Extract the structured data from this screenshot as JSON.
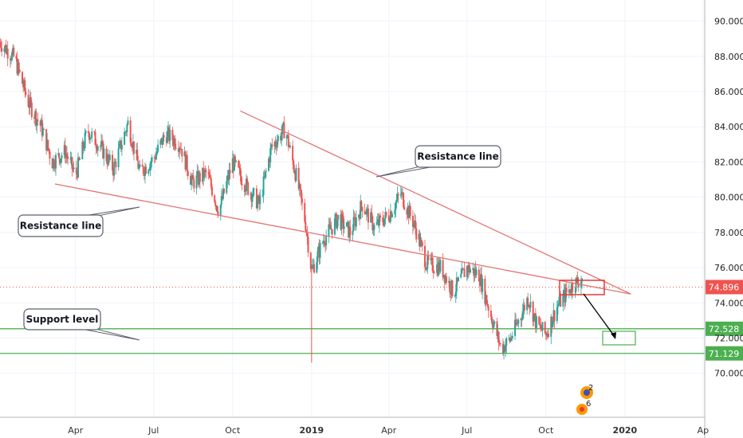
{
  "chart_data": {
    "type": "candlestick",
    "y_ticks": [
      70,
      72,
      74,
      76,
      78,
      80,
      82,
      84,
      86,
      88,
      90
    ],
    "y_tick_labels": [
      "70.000",
      "72.000",
      "74.000",
      "76.000",
      "78.000",
      "80.000",
      "82.000",
      "84.000",
      "86.000",
      "88.000",
      "90.000"
    ],
    "ylim": [
      67.5,
      91.2
    ],
    "x_ticks": [
      {
        "label": "Apr",
        "date": "2018-04-01"
      },
      {
        "label": "Jul",
        "date": "2018-07-01"
      },
      {
        "label": "Oct",
        "date": "2018-10-01"
      },
      {
        "label": "2019",
        "date": "2019-01-01",
        "bold": true
      },
      {
        "label": "Apr",
        "date": "2019-04-01"
      },
      {
        "label": "Jul",
        "date": "2019-07-01"
      },
      {
        "label": "Oct",
        "date": "2019-10-01"
      },
      {
        "label": "2020",
        "date": "2020-01-01",
        "bold": true
      },
      {
        "label": "Ap",
        "date": "2020-04-01"
      }
    ],
    "xlim": [
      "2018-01-03",
      "2020-04-03"
    ],
    "price_path": [
      [
        "2018-01-03",
        88.8
      ],
      [
        "2018-01-20",
        87.9
      ],
      [
        "2018-02-05",
        85.4
      ],
      [
        "2018-02-20",
        84.0
      ],
      [
        "2018-03-05",
        82.0
      ],
      [
        "2018-03-20",
        82.6
      ],
      [
        "2018-04-01",
        81.2
      ],
      [
        "2018-04-15",
        83.8
      ],
      [
        "2018-05-01",
        82.8
      ],
      [
        "2018-05-15",
        81.6
      ],
      [
        "2018-06-01",
        84.2
      ],
      [
        "2018-06-15",
        81.4
      ],
      [
        "2018-07-01",
        82.2
      ],
      [
        "2018-07-15",
        83.6
      ],
      [
        "2018-08-01",
        83.0
      ],
      [
        "2018-08-15",
        80.8
      ],
      [
        "2018-09-01",
        81.4
      ],
      [
        "2018-09-15",
        79.2
      ],
      [
        "2018-10-01",
        82.0
      ],
      [
        "2018-10-15",
        80.8
      ],
      [
        "2018-11-01",
        79.6
      ],
      [
        "2018-11-15",
        82.8
      ],
      [
        "2018-12-01",
        83.9
      ],
      [
        "2018-12-15",
        81.0
      ],
      [
        "2018-12-25",
        78.5
      ],
      [
        "2019-01-01",
        75.8
      ],
      [
        "2019-01-15",
        77.6
      ],
      [
        "2019-02-01",
        78.8
      ],
      [
        "2019-02-15",
        78.0
      ],
      [
        "2019-03-01",
        79.6
      ],
      [
        "2019-03-15",
        78.3
      ],
      [
        "2019-04-01",
        79.0
      ],
      [
        "2019-04-15",
        80.2
      ],
      [
        "2019-05-01",
        78.4
      ],
      [
        "2019-05-15",
        76.2
      ],
      [
        "2019-06-01",
        76.0
      ],
      [
        "2019-06-15",
        74.6
      ],
      [
        "2019-07-01",
        76.0
      ],
      [
        "2019-07-15",
        75.6
      ],
      [
        "2019-08-01",
        72.8
      ],
      [
        "2019-08-10",
        71.4
      ],
      [
        "2019-08-20",
        71.9
      ],
      [
        "2019-09-01",
        73.2
      ],
      [
        "2019-09-10",
        74.3
      ],
      [
        "2019-09-20",
        72.8
      ],
      [
        "2019-10-01",
        72.2
      ],
      [
        "2019-10-15",
        73.9
      ],
      [
        "2019-11-01",
        75.0
      ],
      [
        "2019-11-12",
        75.4
      ]
    ],
    "spike": {
      "date": "2019-01-01",
      "low": 70.6
    },
    "current_price": {
      "value": 74.896,
      "label": "74.896"
    },
    "levels": [
      {
        "value": 72.528,
        "label": "72.528",
        "color": "#4caf50"
      },
      {
        "value": 71.129,
        "label": "71.129",
        "color": "#4caf50"
      }
    ],
    "trendlines": [
      {
        "from": [
          "2018-03-08",
          80.75
        ],
        "to": [
          "2020-01-08",
          74.5
        ],
        "color": "#e57373"
      },
      {
        "from": [
          "2018-10-10",
          84.9
        ],
        "to": [
          "2020-01-08",
          74.5
        ],
        "color": "#e57373"
      }
    ],
    "annotations": [
      {
        "text": "Resistance line",
        "anchor": [
          "2019-03-01",
          81.8
        ],
        "side": "right"
      },
      {
        "text": "Resistance line",
        "anchor": [
          "2018-06-05",
          79.9
        ],
        "side": "left"
      },
      {
        "text": "Support level",
        "anchor": [
          "2018-06-05",
          72.55
        ],
        "side": "left"
      }
    ],
    "up_color": "#26a69a",
    "down_color": "#ef5350",
    "xlabel": "",
    "ylabel": ""
  },
  "events": {
    "badge_top": "2",
    "badge_bottom": "6"
  }
}
